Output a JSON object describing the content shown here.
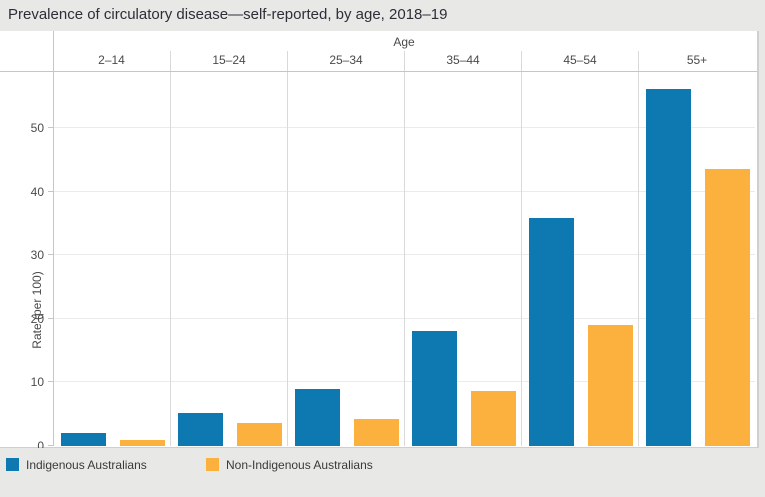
{
  "chart": {
    "title": "Prevalence of circulatory disease—self-reported, by age, 2018–19",
    "x_group_label": "Age",
    "ylabel": "Rate (per 100)"
  },
  "chart_data": {
    "type": "bar",
    "title": "Prevalence of circulatory disease—self-reported, by age, 2018–19",
    "categories": [
      "2–14",
      "15–24",
      "25–34",
      "35–44",
      "45–54",
      "55+"
    ],
    "series": [
      {
        "name": "Indigenous Australians",
        "color": "#0e78b1",
        "values": [
          2.1,
          5.2,
          9.0,
          18.1,
          35.9,
          56.1
        ]
      },
      {
        "name": "Non-Indigenous Australians",
        "color": "#fcb13f",
        "values": [
          1.0,
          3.7,
          4.2,
          8.7,
          19.1,
          43.6
        ]
      }
    ],
    "xlabel": "Age",
    "ylabel": "Rate (per 100)",
    "yticks": [
      0,
      10,
      20,
      30,
      40,
      50
    ],
    "ylim": [
      0,
      58.8
    ],
    "grid": true,
    "legend_position": "bottom"
  },
  "legend": {
    "items": [
      {
        "label": "Indigenous Australians",
        "color": "#0e78b1"
      },
      {
        "label": "Non-Indigenous Australians",
        "color": "#fcb13f"
      }
    ]
  },
  "colors": {
    "indigenous": "#0e78b1",
    "non_indigenous": "#fcb13f",
    "background": "#e8e8e6",
    "plot_background": "#ffffff",
    "gridline": "#ebebeb",
    "divider": "#d9d9d9",
    "border": "#c6c6c6",
    "text": "#4a4a4a",
    "title_text": "#2d2e37"
  }
}
